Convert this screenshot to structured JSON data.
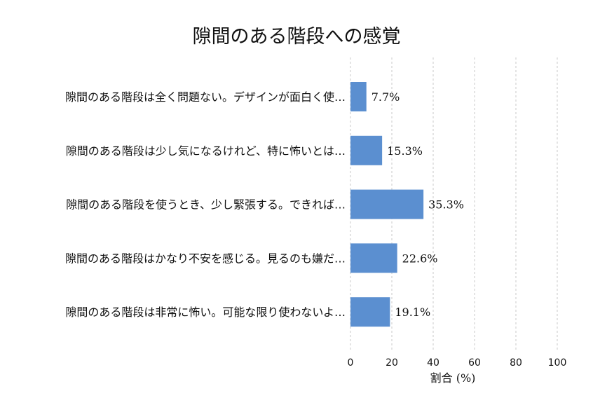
{
  "chart_data": {
    "type": "bar",
    "orientation": "horizontal",
    "title": "隙間のある階段への感覚",
    "xlabel": "割合 (%)",
    "ylabel": "",
    "xlim": [
      0,
      100
    ],
    "xticks": [
      0,
      20,
      40,
      60,
      80,
      100
    ],
    "grid": "x-dashed",
    "bar_color": "#5b8fd0",
    "categories": [
      "隙間のある階段は全く問題ない。デザインが面白く使…",
      "隙間のある階段は少し気になるけれど、特に怖いとは…",
      "隙間のある階段を使うとき、少し緊張する。できれば…",
      "隙間のある階段はかなり不安を感じる。見るのも嫌だ…",
      "隙間のある階段は非常に怖い。可能な限り使わないよ…"
    ],
    "values": [
      7.7,
      15.3,
      35.3,
      22.6,
      19.1
    ],
    "value_labels": [
      "7.7%",
      "15.3%",
      "35.3%",
      "22.6%",
      "19.1%"
    ]
  }
}
